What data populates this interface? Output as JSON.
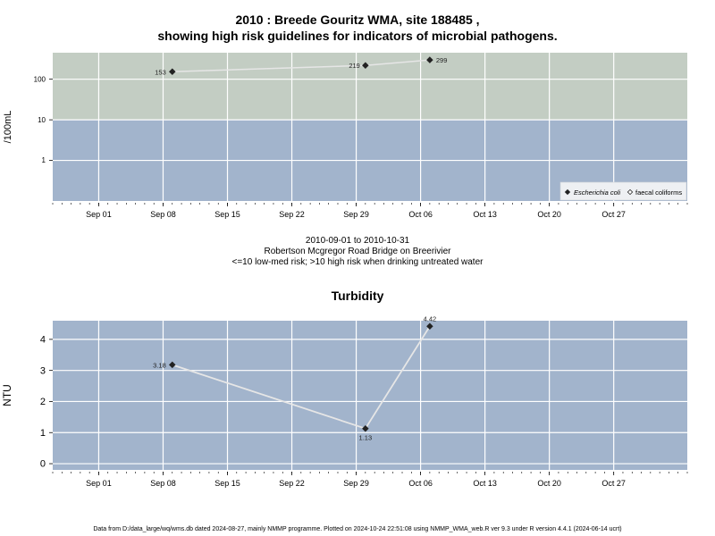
{
  "chart_data": [
    {
      "type": "scatter",
      "title_line1": "2010 : Breede Gouritz WMA, site 188485 ,",
      "title_line2": "showing high risk guidelines for indicators of microbial pathogens.",
      "ylabel": "/100mL",
      "yscale": "log",
      "ylim": [
        0.1,
        450
      ],
      "yticks": [
        {
          "value": 1,
          "label": "1"
        },
        {
          "value": 10,
          "label": "10"
        },
        {
          "value": 100,
          "label": "100"
        }
      ],
      "xlim": [
        "2010-08-27",
        "2010-11-04"
      ],
      "xticks": [
        {
          "date": "2010-09-01",
          "label": "Sep 01"
        },
        {
          "date": "2010-09-08",
          "label": "Sep 08"
        },
        {
          "date": "2010-09-15",
          "label": "Sep 15"
        },
        {
          "date": "2010-09-22",
          "label": "Sep 22"
        },
        {
          "date": "2010-09-29",
          "label": "Sep 29"
        },
        {
          "date": "2010-10-06",
          "label": "Oct 06"
        },
        {
          "date": "2010-10-13",
          "label": "Oct 13"
        },
        {
          "date": "2010-10-20",
          "label": "Oct 20"
        },
        {
          "date": "2010-10-27",
          "label": "Oct 27"
        }
      ],
      "bands": [
        {
          "from": 0.1,
          "to": 10,
          "color": "#a2b4cc"
        },
        {
          "from": 10,
          "to": 450,
          "color": "#c3cdc3"
        }
      ],
      "series": [
        {
          "name": "Escherichia coli",
          "marker": "filled-diamond",
          "points": [
            {
              "date": "2010-09-09",
              "value": 153,
              "label": "153"
            },
            {
              "date": "2010-09-30",
              "value": 219,
              "label": "219"
            },
            {
              "date": "2010-10-07",
              "value": 299,
              "label": "299"
            }
          ]
        },
        {
          "name": "faecal coliforms",
          "marker": "open-diamond",
          "points": []
        }
      ],
      "legend_position": "bottom-right",
      "grid": true,
      "caption_line1": "2010-09-01 to 2010-10-31",
      "caption_line2": "Robertson Mcgregor Road Bridge on Breerivier",
      "caption_line3": "<=10 low-med risk; >10 high risk when drinking untreated water"
    },
    {
      "type": "line",
      "title": "Turbidity",
      "ylabel": "NTU",
      "ylim": [
        -0.2,
        4.6
      ],
      "yticks": [
        {
          "value": 0,
          "label": "0"
        },
        {
          "value": 1,
          "label": "1"
        },
        {
          "value": 2,
          "label": "2"
        },
        {
          "value": 3,
          "label": "3"
        },
        {
          "value": 4,
          "label": "4"
        }
      ],
      "xlim": [
        "2010-08-27",
        "2010-11-04"
      ],
      "xticks": [
        {
          "date": "2010-09-01",
          "label": "Sep 01"
        },
        {
          "date": "2010-09-08",
          "label": "Sep 08"
        },
        {
          "date": "2010-09-15",
          "label": "Sep 15"
        },
        {
          "date": "2010-09-22",
          "label": "Sep 22"
        },
        {
          "date": "2010-09-29",
          "label": "Sep 29"
        },
        {
          "date": "2010-10-06",
          "label": "Oct 06"
        },
        {
          "date": "2010-10-13",
          "label": "Oct 13"
        },
        {
          "date": "2010-10-20",
          "label": "Oct 20"
        },
        {
          "date": "2010-10-27",
          "label": "Oct 27"
        }
      ],
      "background": "#a2b4cc",
      "series": [
        {
          "marker": "filled-diamond",
          "points": [
            {
              "date": "2010-09-09",
              "value": 3.18,
              "label": "3.18"
            },
            {
              "date": "2010-09-30",
              "value": 1.13,
              "label": "1.13"
            },
            {
              "date": "2010-10-07",
              "value": 4.42,
              "label": "4.42"
            }
          ]
        }
      ],
      "grid": true
    }
  ],
  "footer": "Data from D:/data_large/wq/wms.db dated 2024-08-27, mainly NMMP programme. Plotted on 2024-10-24 22:51:08 using NMMP_WMA_web.R ver 9.3 under R version 4.4.1 (2024-06-14 ucrt)"
}
